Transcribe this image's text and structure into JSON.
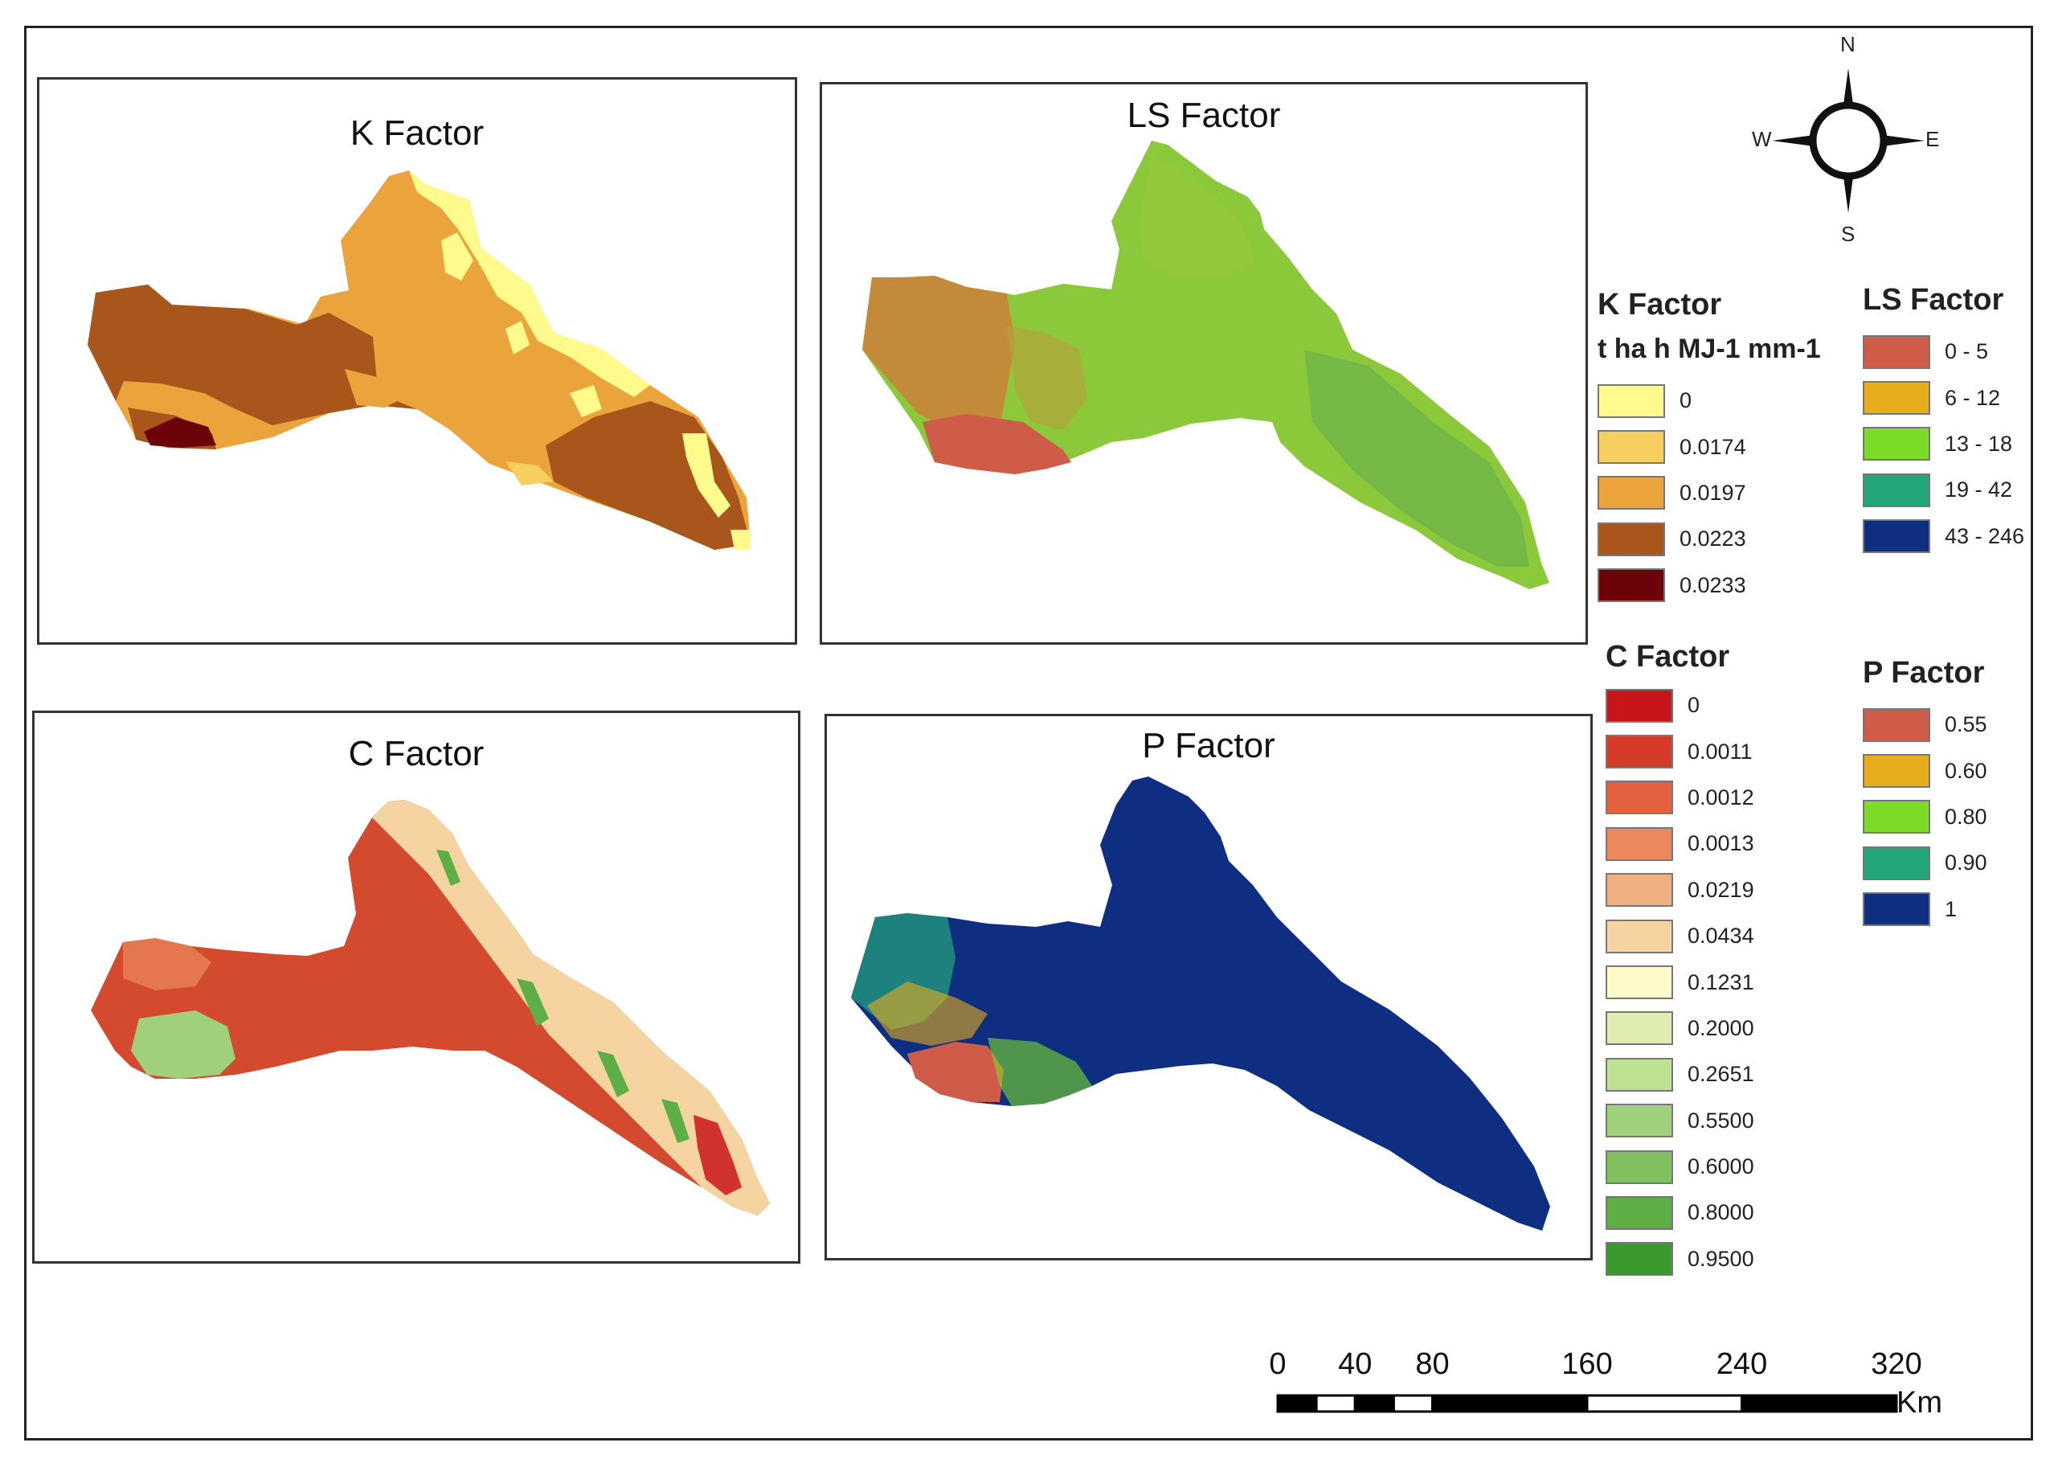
{
  "panels": {
    "k": {
      "title": "K Factor"
    },
    "ls": {
      "title": "LS Factor"
    },
    "c": {
      "title": "C Factor"
    },
    "p": {
      "title": "P Factor"
    }
  },
  "legends": {
    "k": {
      "title": "K Factor",
      "subtitle": "t ha h MJ-1 mm-1",
      "items": [
        {
          "label": "0",
          "color": "#FFFA8C"
        },
        {
          "label": "0.0174",
          "color": "#F6CF60"
        },
        {
          "label": "0.0197",
          "color": "#EBA43C"
        },
        {
          "label": "0.0223",
          "color": "#A9561C"
        },
        {
          "label": "0.0233",
          "color": "#6B0308"
        }
      ]
    },
    "ls": {
      "title": "LS Factor",
      "items": [
        {
          "label": "0 - 5",
          "color": "#CF5B49"
        },
        {
          "label": "6 - 12",
          "color": "#E6AD1C"
        },
        {
          "label": "13 - 18",
          "color": "#7BDB26"
        },
        {
          "label": "19 - 42",
          "color": "#23A67C"
        },
        {
          "label": "43 - 246",
          "color": "#0E2E82"
        }
      ]
    },
    "c": {
      "title": "C Factor",
      "items": [
        {
          "label": "0",
          "color": "#C8151B"
        },
        {
          "label": "0.0011",
          "color": "#D63A28"
        },
        {
          "label": "0.0012",
          "color": "#E4603E"
        },
        {
          "label": "0.0013",
          "color": "#EC8A5E"
        },
        {
          "label": "0.0219",
          "color": "#F1AE7E"
        },
        {
          "label": "0.0434",
          "color": "#F6D4A2"
        },
        {
          "label": "0.1231",
          "color": "#FEFACA"
        },
        {
          "label": "0.2000",
          "color": "#DFEEB0"
        },
        {
          "label": "0.2651",
          "color": "#BEE194"
        },
        {
          "label": "0.5500",
          "color": "#A0D07C"
        },
        {
          "label": "0.6000",
          "color": "#7FBF5F"
        },
        {
          "label": "0.8000",
          "color": "#5DAE45"
        },
        {
          "label": "0.9500",
          "color": "#3A9A2C"
        }
      ]
    },
    "p": {
      "title": "P Factor",
      "items": [
        {
          "label": "0.55",
          "color": "#CF5B49"
        },
        {
          "label": "0.60",
          "color": "#E6AD1C"
        },
        {
          "label": "0.80",
          "color": "#7BDB26"
        },
        {
          "label": "0.90",
          "color": "#23A67C"
        },
        {
          "label": "1",
          "color": "#0E2E82"
        }
      ]
    }
  },
  "compass": {
    "n": "N",
    "s": "S",
    "e": "E",
    "w": "W"
  },
  "scale": {
    "ticks": [
      "0",
      "40",
      "80",
      "160",
      "240",
      "320"
    ],
    "tick_values": [
      0,
      40,
      80,
      160,
      240,
      320
    ],
    "unit": "Km"
  }
}
